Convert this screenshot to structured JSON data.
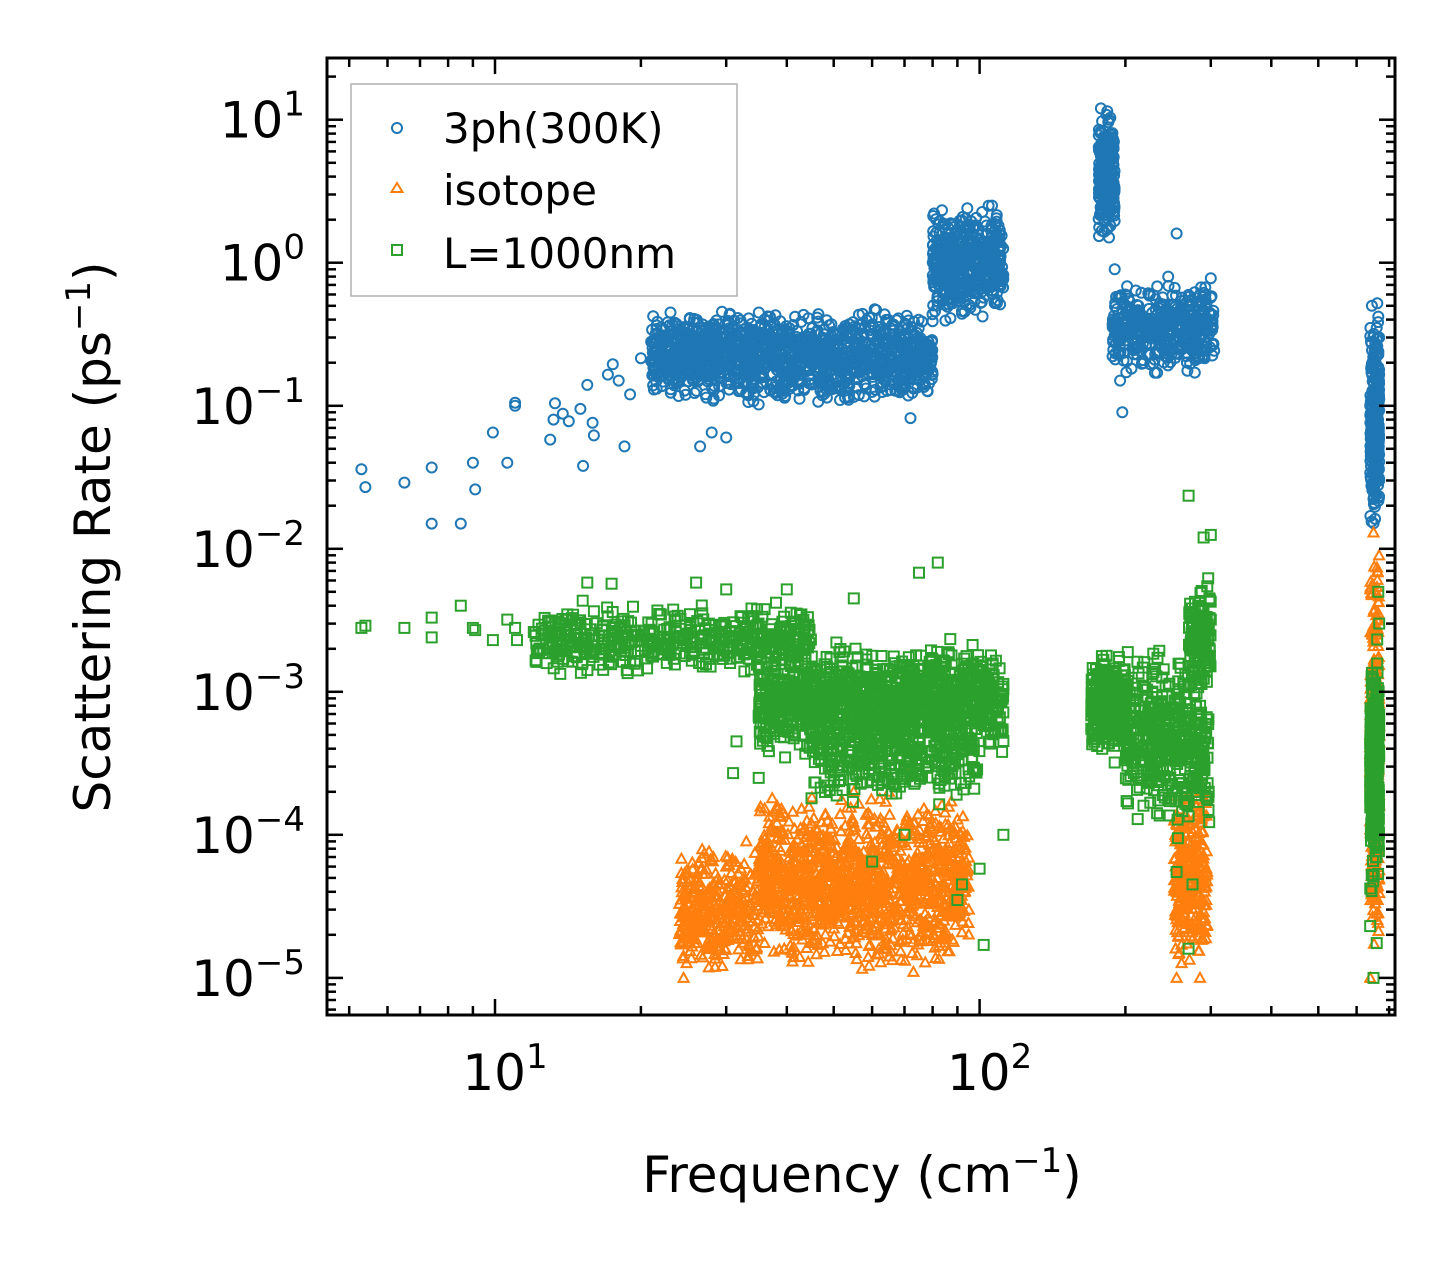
{
  "chart_data": {
    "type": "scatter",
    "xscale": "log",
    "yscale": "log",
    "xlim": [
      4.5,
      720
    ],
    "ylim": [
      5.5e-06,
      27
    ],
    "xlabel": "Frequency (cm",
    "xlabel_sup": "−1",
    "xlabel_end": ")",
    "ylabel": "Scattering Rate (ps",
    "ylabel_sup": "−1",
    "ylabel_end": ")",
    "x_major_ticks": [
      {
        "value": 10,
        "base": "10",
        "exp": "1"
      },
      {
        "value": 100,
        "base": "10",
        "exp": "2"
      }
    ],
    "y_major_ticks": [
      {
        "value": 10,
        "base": "10",
        "exp": "1"
      },
      {
        "value": 1,
        "base": "10",
        "exp": "0"
      },
      {
        "value": 0.1,
        "base": "10",
        "exp": "−1"
      },
      {
        "value": 0.01,
        "base": "10",
        "exp": "−2"
      },
      {
        "value": 0.001,
        "base": "10",
        "exp": "−3"
      },
      {
        "value": 0.0001,
        "base": "10",
        "exp": "−4"
      },
      {
        "value": 1e-05,
        "base": "10",
        "exp": "−5"
      }
    ],
    "legend_position": "top-left",
    "series": [
      {
        "name": "3ph(300K)",
        "color": "#1f77b4",
        "marker": "circle",
        "points": [
          [
            5.3,
            0.036
          ],
          [
            5.4,
            0.027
          ],
          [
            6.5,
            0.029
          ],
          [
            7.4,
            0.037
          ],
          [
            7.4,
            0.015
          ],
          [
            8.5,
            0.015
          ],
          [
            9.0,
            0.04
          ],
          [
            9.1,
            0.026
          ],
          [
            9.9,
            0.065
          ],
          [
            10.6,
            0.04
          ],
          [
            11.0,
            0.105
          ],
          [
            11.0,
            0.1
          ],
          [
            13.0,
            0.058
          ],
          [
            13.2,
            0.08
          ],
          [
            13.3,
            0.104
          ],
          [
            13.8,
            0.088
          ],
          [
            14.2,
            0.078
          ],
          [
            15.0,
            0.095
          ],
          [
            15.2,
            0.038
          ],
          [
            15.5,
            0.14
          ],
          [
            15.9,
            0.076
          ],
          [
            16.0,
            0.062
          ],
          [
            17.1,
            0.165
          ],
          [
            17.5,
            0.195
          ],
          [
            18.0,
            0.15
          ],
          [
            18.5,
            0.052
          ],
          [
            19.0,
            0.12
          ],
          [
            20.0,
            0.215
          ],
          [
            21.0,
            0.205
          ],
          [
            22.0,
            0.175
          ],
          [
            24.0,
            0.198
          ],
          [
            25.0,
            0.175
          ],
          [
            26.5,
            0.052
          ],
          [
            27.0,
            0.17
          ],
          [
            28.0,
            0.065
          ],
          [
            30.0,
            0.06
          ],
          [
            31.0,
            0.185
          ],
          [
            33.0,
            0.145
          ],
          [
            35.0,
            0.102
          ],
          [
            36.0,
            0.355
          ],
          [
            40.0,
            0.33
          ],
          [
            45.0,
            0.21
          ],
          [
            48.0,
            0.21
          ],
          [
            50.0,
            0.19
          ],
          [
            55.0,
            0.17
          ],
          [
            60.0,
            0.125
          ],
          [
            65.0,
            0.21
          ],
          [
            72.0,
            0.082
          ],
          [
            75.0,
            0.29
          ],
          [
            80.0,
            0.39
          ],
          [
            82.0,
            0.57
          ],
          [
            86.0,
            0.72
          ],
          [
            88.0,
            0.52
          ],
          [
            92.0,
            0.46
          ],
          [
            100.0,
            1.28
          ],
          [
            110.0,
            1.3
          ],
          [
            178.0,
            12.0
          ],
          [
            178.5,
            8.0
          ],
          [
            180.0,
            3.0
          ],
          [
            182.0,
            5.0
          ],
          [
            185.0,
            1.5
          ],
          [
            190.0,
            0.9
          ],
          [
            195.0,
            0.15
          ],
          [
            197.0,
            0.09
          ],
          [
            200.0,
            0.6
          ],
          [
            210.0,
            0.25
          ],
          [
            220.0,
            0.35
          ],
          [
            230.0,
            0.17
          ],
          [
            245.0,
            0.8
          ],
          [
            255.0,
            1.6
          ],
          [
            260.0,
            0.4
          ],
          [
            270.0,
            0.28
          ],
          [
            285.0,
            0.6
          ],
          [
            300.0,
            0.78
          ],
          [
            300.0,
            0.57
          ],
          [
            295.0,
            0.38
          ],
          [
            640.0,
            0.1
          ],
          [
            642.0,
            0.28
          ],
          [
            645.0,
            0.5
          ],
          [
            650.0,
            0.18
          ],
          [
            652.0,
            0.03
          ],
          [
            655.0,
            0.055
          ],
          [
            660.0,
            0.35
          ],
          [
            662.0,
            0.52
          ],
          [
            665.0,
            0.42
          ],
          [
            668.0,
            0.3
          ]
        ],
        "clusters": [
          {
            "x": [
              21.0,
              80.0
            ],
            "y": [
              0.1,
              0.5
            ],
            "n": 1400,
            "spread": 0.95
          },
          {
            "x": [
              80.0,
              112.0
            ],
            "y": [
              0.35,
              2.8
            ],
            "n": 500,
            "spread": 0.6
          },
          {
            "x": [
              176.0,
              190.0
            ],
            "y": [
              1.2,
              13.0
            ],
            "n": 250,
            "spread": 0.6
          },
          {
            "x": [
              188.0,
              305.0
            ],
            "y": [
              0.15,
              0.8
            ],
            "n": 450,
            "spread": 0.8
          },
          {
            "x": [
              640.0,
              668.0
            ],
            "y": [
              0.012,
              0.5
            ],
            "n": 300,
            "spread": 0.5
          }
        ]
      },
      {
        "name": "isotope",
        "color": "#ff7f0e",
        "marker": "triangle",
        "points": [
          [
            24.5,
            1e-05
          ],
          [
            27.0,
            2.5e-05
          ],
          [
            30.0,
            6e-05
          ],
          [
            33.0,
            9e-05
          ],
          [
            36.0,
            4e-05
          ],
          [
            45.0,
            0.00012
          ],
          [
            55.0,
            0.0002
          ],
          [
            65.0,
            0.0002
          ],
          [
            70.0,
            0.0003
          ],
          [
            73.0,
            1.1e-05
          ],
          [
            80.0,
            0.00011
          ],
          [
            90.0,
            6e-05
          ],
          [
            95.0,
            3e-05
          ],
          [
            255.0,
            1e-05
          ],
          [
            260.0,
            3e-05
          ],
          [
            285.0,
            1e-05
          ],
          [
            290.0,
            2.5e-05
          ],
          [
            640.0,
            1e-05
          ],
          [
            650.0,
            0.013
          ],
          [
            655.0,
            0.003
          ],
          [
            660.0,
            0.001
          ],
          [
            668.0,
            0.0005
          ]
        ],
        "clusters": [
          {
            "x": [
              24.0,
              35.0
            ],
            "y": [
              1e-05,
              9e-05
            ],
            "n": 350,
            "spread": 0.9
          },
          {
            "x": [
              35.0,
              95.0
            ],
            "y": [
              1e-05,
              0.00022
            ],
            "n": 1300,
            "spread": 0.9
          },
          {
            "x": [
              252.0,
              295.0
            ],
            "y": [
              1e-05,
              0.0003
            ],
            "n": 300,
            "spread": 0.9
          },
          {
            "x": [
              640.0,
              668.0
            ],
            "y": [
              1e-05,
              0.012
            ],
            "n": 350,
            "spread": 0.9
          }
        ]
      },
      {
        "name": "L=1000nm",
        "color": "#2ca02c",
        "marker": "square",
        "points": [
          [
            5.3,
            0.0028
          ],
          [
            5.4,
            0.0029
          ],
          [
            6.5,
            0.0028
          ],
          [
            7.4,
            0.0033
          ],
          [
            7.4,
            0.0024
          ],
          [
            8.5,
            0.004
          ],
          [
            9.0,
            0.0028
          ],
          [
            9.1,
            0.0027
          ],
          [
            9.9,
            0.0023
          ],
          [
            10.6,
            0.0032
          ],
          [
            11.0,
            0.0028
          ],
          [
            11.1,
            0.0023
          ],
          [
            15.5,
            0.0058
          ],
          [
            17.4,
            0.0057
          ],
          [
            26.0,
            0.0058
          ],
          [
            30.0,
            0.0052
          ],
          [
            38.0,
            0.0042
          ],
          [
            40.0,
            0.0052
          ],
          [
            55.0,
            0.0045
          ],
          [
            75.0,
            0.0068
          ],
          [
            82.0,
            0.008
          ],
          [
            31.5,
            0.00045
          ],
          [
            31.0,
            0.00027
          ],
          [
            35.0,
            0.00025
          ],
          [
            45.0,
            0.00018
          ],
          [
            60.0,
            6.5e-05
          ],
          [
            70.0,
            0.0001
          ],
          [
            90.0,
            3.5e-05
          ],
          [
            92.0,
            4.5e-05
          ],
          [
            100.0,
            5.8e-05
          ],
          [
            102.0,
            1.7e-05
          ],
          [
            112.0,
            0.0001
          ],
          [
            270.0,
            0.0235
          ],
          [
            290.0,
            0.012
          ],
          [
            300.0,
            0.0125
          ],
          [
            298.0,
            0.0045
          ],
          [
            300.0,
            0.0032
          ],
          [
            255.0,
            5.5e-05
          ],
          [
            270.0,
            1.6e-05
          ],
          [
            275.0,
            4.5e-05
          ],
          [
            640.0,
            2.3e-05
          ],
          [
            650.0,
            1e-05
          ],
          [
            660.0,
            1.75e-05
          ],
          [
            665.0,
            0.005
          ],
          [
            668.0,
            0.003
          ]
        ],
        "clusters": [
          {
            "x": [
              12.0,
              45.0
            ],
            "y": [
              0.0012,
              0.0045
            ],
            "n": 500,
            "spread": 0.5
          },
          {
            "x": [
              35.0,
              112.0
            ],
            "y": [
              0.0003,
              0.0025
            ],
            "n": 1200,
            "spread": 0.6
          },
          {
            "x": [
              45.0,
              100.0
            ],
            "y": [
              0.00015,
              0.0008
            ],
            "n": 300,
            "spread": 0.8
          },
          {
            "x": [
              170.0,
              200.0
            ],
            "y": [
              0.0003,
              0.0022
            ],
            "n": 300,
            "spread": 0.7
          },
          {
            "x": [
              200.0,
              298.0
            ],
            "y": [
              8e-05,
              0.0025
            ],
            "n": 450,
            "spread": 0.8
          },
          {
            "x": [
              270.0,
              300.0
            ],
            "y": [
              0.001,
              0.007
            ],
            "n": 120,
            "spread": 0.6
          },
          {
            "x": [
              640.0,
              668.0
            ],
            "y": [
              3e-05,
              0.0025
            ],
            "n": 350,
            "spread": 0.6
          }
        ]
      }
    ]
  }
}
